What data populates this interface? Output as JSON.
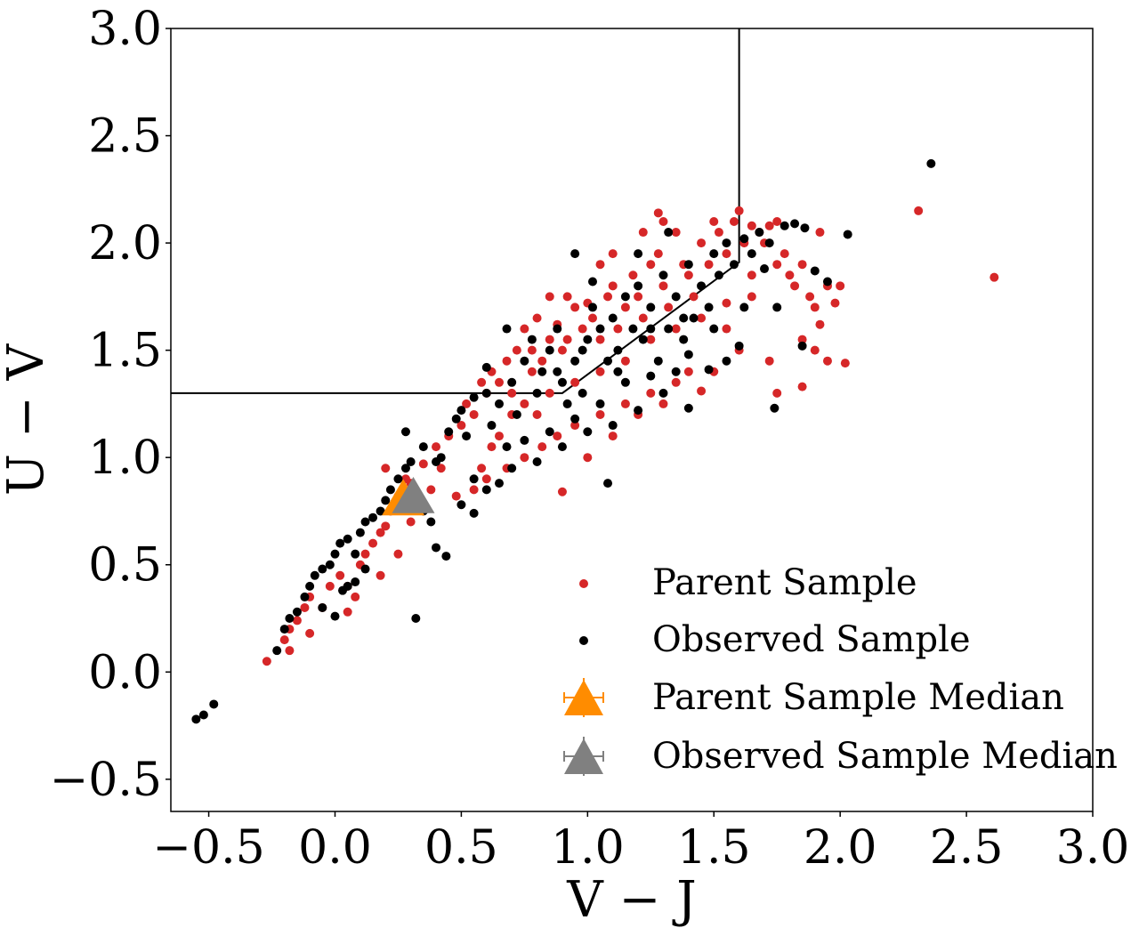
{
  "chart_data": {
    "type": "scatter",
    "title": "",
    "xlabel": "V − J",
    "ylabel": "U − V",
    "xlim": [
      -0.65,
      3.0
    ],
    "ylim": [
      -0.65,
      3.0
    ],
    "xticks": [
      -0.5,
      0.0,
      0.5,
      1.0,
      1.5,
      2.0,
      2.5,
      3.0
    ],
    "yticks": [
      -0.5,
      0.0,
      0.5,
      1.0,
      1.5,
      2.0,
      2.5,
      3.0
    ],
    "xtick_labels": [
      "−0.5",
      "0.0",
      "0.5",
      "1.0",
      "1.5",
      "2.0",
      "2.5",
      "3.0"
    ],
    "ytick_labels": [
      "−0.5",
      "0.0",
      "0.5",
      "1.0",
      "1.5",
      "2.0",
      "2.5",
      "3.0"
    ],
    "grid": false,
    "legend_position": "bottom-right",
    "selection_region": {
      "description": "quiescent selection box",
      "vertices": [
        [
          -0.65,
          1.3
        ],
        [
          0.9,
          1.3
        ],
        [
          1.6,
          1.91
        ],
        [
          1.6,
          3.0
        ]
      ]
    },
    "series": [
      {
        "name": "Parent Sample",
        "marker": "circle",
        "color": "#d62728",
        "points": [
          [
            -0.27,
            0.05
          ],
          [
            -0.2,
            0.15
          ],
          [
            -0.18,
            0.2
          ],
          [
            -0.15,
            0.24
          ],
          [
            -0.12,
            0.3
          ],
          [
            -0.1,
            0.35
          ],
          [
            -0.18,
            0.1
          ],
          [
            -0.1,
            0.18
          ],
          [
            -0.05,
            0.3
          ],
          [
            -0.02,
            0.4
          ],
          [
            0.02,
            0.45
          ],
          [
            0.05,
            0.4
          ],
          [
            0.05,
            0.28
          ],
          [
            0.08,
            0.35
          ],
          [
            0.1,
            0.5
          ],
          [
            0.12,
            0.55
          ],
          [
            0.15,
            0.6
          ],
          [
            0.18,
            0.65
          ],
          [
            0.2,
            0.68
          ],
          [
            0.18,
            0.45
          ],
          [
            0.22,
            0.75
          ],
          [
            0.25,
            0.82
          ],
          [
            0.2,
            0.95
          ],
          [
            0.28,
            0.9
          ],
          [
            0.3,
            0.88
          ],
          [
            0.35,
            0.97
          ],
          [
            0.4,
            1.05
          ],
          [
            0.42,
            0.95
          ],
          [
            0.45,
            1.1
          ],
          [
            0.5,
            1.15
          ],
          [
            0.48,
            0.82
          ],
          [
            0.52,
            1.25
          ],
          [
            0.55,
            1.2
          ],
          [
            0.58,
            1.35
          ],
          [
            0.6,
            1.3
          ],
          [
            0.62,
            1.4
          ],
          [
            0.65,
            1.35
          ],
          [
            0.68,
            1.45
          ],
          [
            0.7,
            1.3
          ],
          [
            0.72,
            1.5
          ],
          [
            0.75,
            1.6
          ],
          [
            0.78,
            1.5
          ],
          [
            0.8,
            1.65
          ],
          [
            0.82,
            1.45
          ],
          [
            0.85,
            1.55
          ],
          [
            0.88,
            1.62
          ],
          [
            0.9,
            1.5
          ],
          [
            0.92,
            1.55
          ],
          [
            0.95,
            1.7
          ],
          [
            0.98,
            1.6
          ],
          [
            1.0,
            1.72
          ],
          [
            1.02,
            1.65
          ],
          [
            1.05,
            1.55
          ],
          [
            1.08,
            1.75
          ],
          [
            1.1,
            1.8
          ],
          [
            1.12,
            1.6
          ],
          [
            1.15,
            1.7
          ],
          [
            1.18,
            1.85
          ],
          [
            1.2,
            1.75
          ],
          [
            1.22,
            1.65
          ],
          [
            1.25,
            1.9
          ],
          [
            1.28,
            1.95
          ],
          [
            1.3,
            1.8
          ],
          [
            1.32,
            1.7
          ],
          [
            1.35,
            2.05
          ],
          [
            1.38,
            1.9
          ],
          [
            1.4,
            1.85
          ],
          [
            1.42,
            1.75
          ],
          [
            1.45,
            2.0
          ],
          [
            1.48,
            1.9
          ],
          [
            1.5,
            2.1
          ],
          [
            1.52,
            2.05
          ],
          [
            1.55,
            1.95
          ],
          [
            1.58,
            2.1
          ],
          [
            1.6,
            2.15
          ],
          [
            1.62,
            2.0
          ],
          [
            1.65,
            2.08
          ],
          [
            1.68,
            2.05
          ],
          [
            1.7,
            2.0
          ],
          [
            1.72,
            2.08
          ],
          [
            1.75,
            2.1
          ],
          [
            1.78,
            1.95
          ],
          [
            1.8,
            1.85
          ],
          [
            1.82,
            1.8
          ],
          [
            1.85,
            1.9
          ],
          [
            1.88,
            1.75
          ],
          [
            1.9,
            1.7
          ],
          [
            1.92,
            1.62
          ],
          [
            1.95,
            1.8
          ],
          [
            1.98,
            1.72
          ],
          [
            2.02,
            1.44
          ],
          [
            1.9,
            1.5
          ],
          [
            1.85,
            1.55
          ],
          [
            1.72,
            1.45
          ],
          [
            1.6,
            1.5
          ],
          [
            1.5,
            1.4
          ],
          [
            1.45,
            1.31
          ],
          [
            1.35,
            1.35
          ],
          [
            1.25,
            1.3
          ],
          [
            1.15,
            1.25
          ],
          [
            1.05,
            1.2
          ],
          [
            0.95,
            1.15
          ],
          [
            0.88,
            1.1
          ],
          [
            0.82,
            1.05
          ],
          [
            0.75,
            1.0
          ],
          [
            0.68,
            0.95
          ],
          [
            0.6,
            0.9
          ],
          [
            0.55,
            0.85
          ],
          [
            0.9,
            0.84
          ],
          [
            1.0,
            1.0
          ],
          [
            1.1,
            1.1
          ],
          [
            1.2,
            1.2
          ],
          [
            1.3,
            1.25
          ],
          [
            1.4,
            1.4
          ],
          [
            1.55,
            1.6
          ],
          [
            1.65,
            1.75
          ],
          [
            1.75,
            1.3
          ],
          [
            1.85,
            1.33
          ],
          [
            1.95,
            1.45
          ],
          [
            1.92,
            2.05
          ],
          [
            2.0,
            1.8
          ],
          [
            1.3,
            2.1
          ],
          [
            1.22,
            2.05
          ],
          [
            1.05,
            1.9
          ],
          [
            0.92,
            1.75
          ],
          [
            0.85,
            1.75
          ],
          [
            0.78,
            1.4
          ],
          [
            0.7,
            1.2
          ],
          [
            0.65,
            1.1
          ],
          [
            0.62,
            1.05
          ],
          [
            0.58,
            0.95
          ],
          [
            0.75,
            1.25
          ],
          [
            0.8,
            1.2
          ],
          [
            0.85,
            1.3
          ],
          [
            0.95,
            1.35
          ],
          [
            1.05,
            1.4
          ],
          [
            1.15,
            1.45
          ],
          [
            1.25,
            1.55
          ],
          [
            1.35,
            1.6
          ],
          [
            1.45,
            1.65
          ],
          [
            1.55,
            1.72
          ],
          [
            1.65,
            1.85
          ],
          [
            1.75,
            1.9
          ],
          [
            2.31,
            2.15
          ],
          [
            2.61,
            1.84
          ],
          [
            1.28,
            2.14
          ],
          [
            1.1,
            1.95
          ],
          [
            0.25,
            0.55
          ],
          [
            0.3,
            0.7
          ],
          [
            0.38,
            0.85
          ]
        ]
      },
      {
        "name": "Observed Sample",
        "marker": "circle",
        "color": "#000000",
        "points": [
          [
            -0.55,
            -0.22
          ],
          [
            -0.52,
            -0.2
          ],
          [
            -0.48,
            -0.15
          ],
          [
            -0.23,
            0.1
          ],
          [
            -0.2,
            0.2
          ],
          [
            -0.18,
            0.25
          ],
          [
            -0.15,
            0.28
          ],
          [
            -0.12,
            0.35
          ],
          [
            -0.1,
            0.4
          ],
          [
            -0.08,
            0.45
          ],
          [
            -0.05,
            0.48
          ],
          [
            -0.02,
            0.5
          ],
          [
            0.0,
            0.55
          ],
          [
            0.02,
            0.6
          ],
          [
            0.05,
            0.62
          ],
          [
            0.08,
            0.55
          ],
          [
            0.1,
            0.65
          ],
          [
            0.12,
            0.7
          ],
          [
            0.15,
            0.72
          ],
          [
            0.18,
            0.75
          ],
          [
            0.2,
            0.8
          ],
          [
            0.22,
            0.85
          ],
          [
            0.25,
            0.9
          ],
          [
            0.28,
            0.95
          ],
          [
            0.3,
            0.98
          ],
          [
            0.0,
            0.26
          ],
          [
            0.05,
            0.4
          ],
          [
            0.12,
            0.48
          ],
          [
            0.08,
            0.42
          ],
          [
            0.03,
            0.38
          ],
          [
            -0.05,
            0.3
          ],
          [
            0.32,
            0.25
          ],
          [
            0.35,
            0.75
          ],
          [
            0.38,
            0.7
          ],
          [
            0.4,
            0.58
          ],
          [
            0.44,
            0.54
          ],
          [
            0.35,
            1.05
          ],
          [
            0.4,
            0.98
          ],
          [
            0.42,
            1.0
          ],
          [
            0.45,
            1.12
          ],
          [
            0.48,
            1.18
          ],
          [
            0.5,
            1.22
          ],
          [
            0.52,
            1.1
          ],
          [
            0.55,
            1.28
          ],
          [
            0.6,
            1.3
          ],
          [
            0.62,
            1.15
          ],
          [
            0.65,
            1.25
          ],
          [
            0.68,
            1.05
          ],
          [
            0.7,
            1.35
          ],
          [
            0.72,
            1.2
          ],
          [
            0.75,
            1.45
          ],
          [
            0.78,
            1.55
          ],
          [
            0.8,
            1.3
          ],
          [
            0.82,
            1.4
          ],
          [
            0.85,
            1.5
          ],
          [
            0.88,
            1.6
          ],
          [
            0.9,
            1.35
          ],
          [
            0.92,
            1.25
          ],
          [
            0.95,
            1.45
          ],
          [
            0.98,
            1.3
          ],
          [
            1.0,
            1.55
          ],
          [
            1.02,
            1.7
          ],
          [
            1.05,
            1.6
          ],
          [
            1.08,
            1.45
          ],
          [
            1.1,
            1.65
          ],
          [
            1.12,
            1.5
          ],
          [
            1.15,
            1.75
          ],
          [
            1.18,
            1.6
          ],
          [
            1.2,
            1.8
          ],
          [
            1.22,
            1.55
          ],
          [
            1.25,
            1.7
          ],
          [
            1.28,
            1.45
          ],
          [
            1.3,
            1.85
          ],
          [
            1.32,
            1.6
          ],
          [
            1.35,
            1.75
          ],
          [
            1.38,
            1.55
          ],
          [
            1.4,
            1.9
          ],
          [
            1.42,
            1.65
          ],
          [
            1.45,
            1.8
          ],
          [
            1.48,
            1.7
          ],
          [
            1.5,
            1.95
          ],
          [
            1.52,
            1.85
          ],
          [
            1.55,
            2.0
          ],
          [
            1.58,
            1.9
          ],
          [
            1.62,
            2.02
          ],
          [
            1.65,
            1.95
          ],
          [
            1.68,
            2.05
          ],
          [
            1.72,
            2.0
          ],
          [
            1.78,
            2.08
          ],
          [
            1.82,
            2.09
          ],
          [
            1.86,
            2.07
          ],
          [
            1.9,
            1.87
          ],
          [
            1.95,
            1.82
          ],
          [
            2.03,
            2.04
          ],
          [
            1.7,
            1.88
          ],
          [
            1.75,
            1.7
          ],
          [
            1.85,
            1.52
          ],
          [
            1.74,
            1.23
          ],
          [
            1.6,
            1.52
          ],
          [
            1.55,
            1.45
          ],
          [
            1.48,
            1.41
          ],
          [
            1.4,
            1.48
          ],
          [
            1.35,
            1.4
          ],
          [
            1.3,
            1.3
          ],
          [
            1.25,
            1.38
          ],
          [
            1.2,
            1.22
          ],
          [
            1.15,
            1.35
          ],
          [
            1.1,
            1.15
          ],
          [
            1.05,
            1.25
          ],
          [
            1.0,
            1.12
          ],
          [
            0.95,
            1.18
          ],
          [
            0.9,
            1.05
          ],
          [
            0.85,
            1.12
          ],
          [
            0.8,
            0.98
          ],
          [
            0.75,
            1.08
          ],
          [
            0.7,
            0.95
          ],
          [
            0.65,
            0.88
          ],
          [
            0.6,
            0.85
          ],
          [
            0.55,
            0.9
          ],
          [
            0.5,
            0.78
          ],
          [
            0.55,
            0.74
          ],
          [
            1.08,
            0.88
          ],
          [
            1.4,
            1.23
          ],
          [
            0.28,
            1.12
          ],
          [
            0.95,
            1.95
          ],
          [
            1.02,
            1.82
          ],
          [
            1.32,
            2.05
          ],
          [
            0.6,
            1.42
          ],
          [
            0.68,
            1.6
          ],
          [
            0.88,
            1.4
          ],
          [
            0.98,
            1.5
          ],
          [
            1.12,
            1.4
          ],
          [
            1.25,
            1.6
          ],
          [
            1.38,
            1.65
          ],
          [
            1.5,
            1.6
          ],
          [
            1.62,
            1.7
          ],
          [
            2.36,
            2.37
          ],
          [
            1.2,
            1.95
          ]
        ]
      },
      {
        "name": "Parent Sample Median",
        "marker": "triangle",
        "color": "#ff8c00",
        "points": [
          [
            0.27,
            0.8
          ]
        ],
        "xerr": 0.04,
        "yerr": 0.06
      },
      {
        "name": "Observed Sample Median",
        "marker": "triangle",
        "color": "#808080",
        "points": [
          [
            0.31,
            0.81
          ]
        ],
        "xerr": 0.04,
        "yerr": 0.06
      }
    ]
  }
}
